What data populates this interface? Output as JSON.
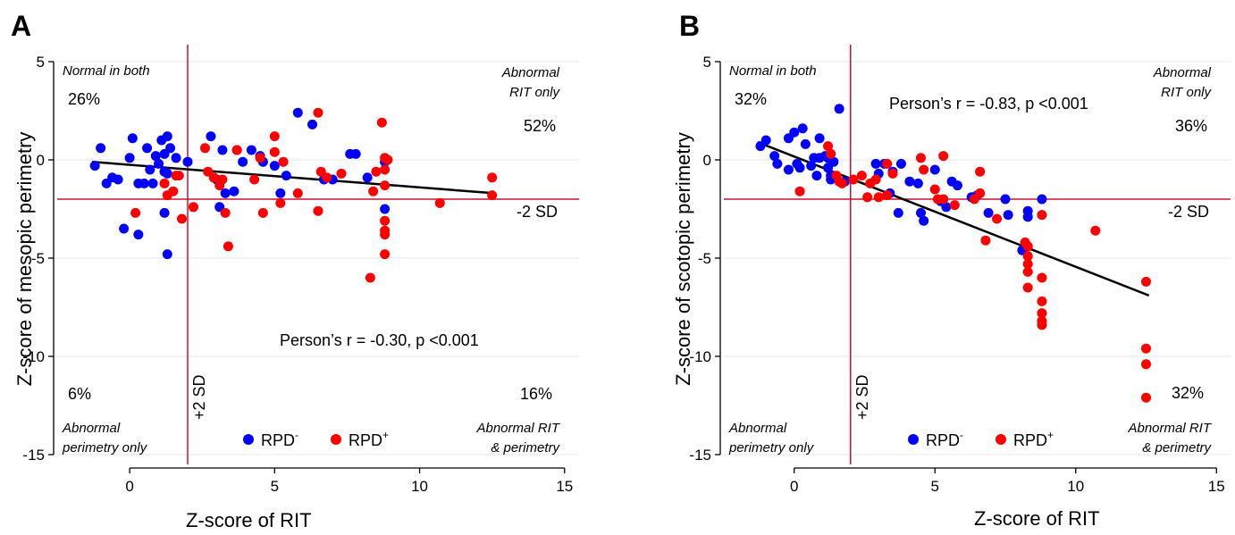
{
  "colors": {
    "rpd_neg": "#0000ff",
    "rpd_pos": "#ff0000",
    "refline": "#cc1133",
    "fit": "#000000"
  },
  "chart_data": [
    {
      "panel": "A",
      "type": "scatter",
      "xlabel": "Z-score of RIT",
      "ylabel": "Z-score of mesopic perimetry",
      "xlim": [
        -2.5,
        15.5
      ],
      "ylim": [
        -15.5,
        5.5
      ],
      "xticks": [
        "0",
        "5",
        "10",
        "15"
      ],
      "yticks": [
        "5",
        "0",
        "-5",
        "-10",
        "-15"
      ],
      "grid": true,
      "ref_x": 2,
      "ref_x_label": "+2 SD",
      "ref_y": -2,
      "ref_y_label": "-2 SD",
      "annotation": "Person’s r = -0.30, p <0.001",
      "quadrants": {
        "top_left": {
          "label": "Normal in both",
          "pct": "26%"
        },
        "top_right": {
          "label_lines": [
            "Abnormal",
            "RIT only"
          ],
          "pct": "52%"
        },
        "bottom_left": {
          "label_lines": [
            "Abnormal",
            "perimetry only"
          ],
          "pct": "6%"
        },
        "bottom_right": {
          "label_lines": [
            "Abnormal RIT",
            "& perimetry"
          ],
          "pct": "16%"
        }
      },
      "legend": {
        "placement": "bottom-center",
        "entries": [
          {
            "base": "RPD",
            "sup": "-"
          },
          {
            "base": "RPD",
            "sup": "+"
          }
        ]
      },
      "fit_line": {
        "x": [
          -1.3,
          12.6
        ],
        "y": [
          -0.1,
          -1.7
        ]
      },
      "series": [
        {
          "name": "RPD-",
          "points": [
            [
              -1.2,
              -0.3
            ],
            [
              -1.0,
              0.6
            ],
            [
              -0.8,
              -1.2
            ],
            [
              -0.6,
              -0.9
            ],
            [
              -0.4,
              -1.0
            ],
            [
              -0.2,
              -3.5
            ],
            [
              0.0,
              0.1
            ],
            [
              0.1,
              1.1
            ],
            [
              0.3,
              -1.2
            ],
            [
              0.3,
              -3.8
            ],
            [
              0.5,
              -1.2
            ],
            [
              0.6,
              0.6
            ],
            [
              0.7,
              -0.5
            ],
            [
              0.8,
              -1.2
            ],
            [
              0.9,
              0.2
            ],
            [
              1.0,
              -0.2
            ],
            [
              1.1,
              1.0
            ],
            [
              1.2,
              0.3
            ],
            [
              1.2,
              -0.6
            ],
            [
              1.2,
              -2.7
            ],
            [
              1.3,
              1.2
            ],
            [
              1.3,
              -0.7
            ],
            [
              1.3,
              -4.8
            ],
            [
              1.4,
              0.6
            ],
            [
              1.6,
              0.1
            ],
            [
              2.0,
              -0.1
            ],
            [
              2.8,
              1.2
            ],
            [
              3.0,
              -1.0
            ],
            [
              3.1,
              -2.4
            ],
            [
              3.2,
              0.5
            ],
            [
              3.3,
              -1.7
            ],
            [
              3.6,
              -1.6
            ],
            [
              3.7,
              0.5
            ],
            [
              3.9,
              -0.1
            ],
            [
              4.2,
              0.5
            ],
            [
              4.5,
              0.2
            ],
            [
              4.6,
              -0.1
            ],
            [
              5.0,
              -0.3
            ],
            [
              5.2,
              -1.7
            ],
            [
              5.4,
              -0.8
            ],
            [
              5.8,
              2.4
            ],
            [
              6.3,
              1.8
            ],
            [
              6.7,
              -1.0
            ],
            [
              7.0,
              -1.0
            ],
            [
              7.6,
              0.3
            ],
            [
              7.8,
              0.3
            ],
            [
              8.2,
              -0.9
            ],
            [
              8.8,
              -0.1
            ],
            [
              8.8,
              -2.5
            ]
          ]
        },
        {
          "name": "RPD+",
          "points": [
            [
              0.2,
              -2.7
            ],
            [
              1.2,
              -1.2
            ],
            [
              1.3,
              -1.8
            ],
            [
              1.5,
              -1.6
            ],
            [
              1.6,
              -0.8
            ],
            [
              1.7,
              -0.8
            ],
            [
              1.8,
              -3.0
            ],
            [
              2.2,
              -2.4
            ],
            [
              2.6,
              0.6
            ],
            [
              2.7,
              -0.6
            ],
            [
              2.9,
              -0.9
            ],
            [
              3.1,
              -1.3
            ],
            [
              3.2,
              -1.0
            ],
            [
              3.3,
              -2.7
            ],
            [
              3.4,
              -4.4
            ],
            [
              3.7,
              0.5
            ],
            [
              4.3,
              -1.0
            ],
            [
              4.5,
              0.1
            ],
            [
              4.6,
              -2.7
            ],
            [
              5.0,
              1.2
            ],
            [
              5.0,
              0.4
            ],
            [
              5.2,
              -2.2
            ],
            [
              5.3,
              -0.1
            ],
            [
              5.8,
              -1.7
            ],
            [
              6.5,
              2.4
            ],
            [
              6.5,
              -2.6
            ],
            [
              6.6,
              -0.6
            ],
            [
              6.8,
              -0.9
            ],
            [
              7.3,
              -0.7
            ],
            [
              8.3,
              -6.0
            ],
            [
              8.4,
              -1.6
            ],
            [
              8.5,
              -0.6
            ],
            [
              8.7,
              1.9
            ],
            [
              8.8,
              0.1
            ],
            [
              8.8,
              -0.5
            ],
            [
              8.8,
              -1.3
            ],
            [
              8.8,
              -3.1
            ],
            [
              8.8,
              -3.6
            ],
            [
              8.8,
              -3.8
            ],
            [
              8.8,
              -4.8
            ],
            [
              8.9,
              0.0
            ],
            [
              10.7,
              -2.2
            ],
            [
              12.5,
              -0.9
            ],
            [
              12.5,
              -1.8
            ]
          ]
        }
      ]
    },
    {
      "panel": "B",
      "type": "scatter",
      "xlabel": "Z-score of RIT",
      "ylabel": "Z-score of scotopic perimetry",
      "xlim": [
        -2.5,
        15.5
      ],
      "ylim": [
        -15.5,
        5.5
      ],
      "xticks": [
        "0",
        "5",
        "10",
        "15"
      ],
      "yticks": [
        "5",
        "0",
        "-5",
        "-10",
        "-15"
      ],
      "grid": true,
      "ref_x": 2,
      "ref_x_label": "+2 SD",
      "ref_y": -2,
      "ref_y_label": "-2 SD",
      "annotation": "Person’s r = -0.83, p <0.001",
      "quadrants": {
        "top_left": {
          "label": "Normal in both",
          "pct": "32%"
        },
        "top_right": {
          "label_lines": [
            "Abnormal",
            "RIT only"
          ],
          "pct": "36%"
        },
        "bottom_left": {
          "label_lines": [
            "Abnormal",
            "perimetry only"
          ],
          "pct": ""
        },
        "bottom_right": {
          "label_lines": [
            "Abnormal RIT",
            "& perimetry"
          ],
          "pct": "32%"
        }
      },
      "legend": {
        "placement": "bottom-center",
        "entries": [
          {
            "base": "RPD",
            "sup": "-"
          },
          {
            "base": "RPD",
            "sup": "+"
          }
        ]
      },
      "fit_line": {
        "x": [
          -1.3,
          12.6
        ],
        "y": [
          0.9,
          -6.9
        ]
      },
      "series": [
        {
          "name": "RPD-",
          "points": [
            [
              -1.2,
              0.7
            ],
            [
              -1.0,
              1.0
            ],
            [
              -0.7,
              0.2
            ],
            [
              -0.6,
              -0.2
            ],
            [
              -0.2,
              1.1
            ],
            [
              -0.2,
              -0.5
            ],
            [
              0.0,
              1.4
            ],
            [
              0.1,
              -0.2
            ],
            [
              0.2,
              -0.4
            ],
            [
              0.3,
              1.6
            ],
            [
              0.4,
              0.8
            ],
            [
              0.6,
              -0.3
            ],
            [
              0.7,
              0.1
            ],
            [
              0.8,
              -0.8
            ],
            [
              0.9,
              0.1
            ],
            [
              0.9,
              1.1
            ],
            [
              1.1,
              0.2
            ],
            [
              1.2,
              -0.4
            ],
            [
              1.2,
              0.1
            ],
            [
              1.3,
              -0.8
            ],
            [
              1.3,
              -1.0
            ],
            [
              1.4,
              -0.1
            ],
            [
              1.6,
              2.6
            ],
            [
              1.8,
              -1.1
            ],
            [
              2.9,
              -0.2
            ],
            [
              3.0,
              -0.7
            ],
            [
              3.2,
              -0.2
            ],
            [
              3.4,
              -1.7
            ],
            [
              3.5,
              -0.6
            ],
            [
              3.7,
              -2.7
            ],
            [
              3.8,
              -0.2
            ],
            [
              4.1,
              -1.1
            ],
            [
              4.4,
              -1.2
            ],
            [
              4.5,
              -2.7
            ],
            [
              4.6,
              -3.1
            ],
            [
              5.0,
              -0.5
            ],
            [
              5.2,
              -2.1
            ],
            [
              5.4,
              -2.4
            ],
            [
              5.6,
              -1.1
            ],
            [
              5.8,
              -1.3
            ],
            [
              6.3,
              -1.9
            ],
            [
              6.5,
              -1.8
            ],
            [
              6.9,
              -2.7
            ],
            [
              7.5,
              -2.0
            ],
            [
              7.6,
              -2.8
            ],
            [
              8.1,
              -4.6
            ],
            [
              8.3,
              -2.6
            ],
            [
              8.3,
              -2.9
            ],
            [
              8.8,
              -2.0
            ]
          ]
        },
        {
          "name": "RPD+",
          "points": [
            [
              0.2,
              -1.6
            ],
            [
              1.2,
              0.7
            ],
            [
              1.3,
              0.3
            ],
            [
              1.5,
              -0.8
            ],
            [
              1.6,
              -1.1
            ],
            [
              1.7,
              -1.2
            ],
            [
              2.1,
              -1.0
            ],
            [
              2.4,
              -0.8
            ],
            [
              2.6,
              -1.9
            ],
            [
              2.7,
              -1.2
            ],
            [
              2.9,
              -1.0
            ],
            [
              3.0,
              -1.9
            ],
            [
              3.3,
              -0.2
            ],
            [
              3.3,
              -1.8
            ],
            [
              3.5,
              -0.7
            ],
            [
              4.5,
              0.1
            ],
            [
              4.6,
              -0.5
            ],
            [
              5.0,
              -1.5
            ],
            [
              5.1,
              -2.0
            ],
            [
              5.3,
              0.2
            ],
            [
              5.3,
              -2.0
            ],
            [
              5.7,
              -2.3
            ],
            [
              6.4,
              -2.0
            ],
            [
              6.6,
              -0.6
            ],
            [
              6.6,
              -1.7
            ],
            [
              6.8,
              -4.1
            ],
            [
              7.2,
              -3.0
            ],
            [
              8.2,
              -4.2
            ],
            [
              8.3,
              -4.4
            ],
            [
              8.3,
              -4.9
            ],
            [
              8.3,
              -5.3
            ],
            [
              8.3,
              -5.7
            ],
            [
              8.3,
              -6.5
            ],
            [
              8.8,
              -2.8
            ],
            [
              8.8,
              -6.0
            ],
            [
              8.8,
              -7.2
            ],
            [
              8.8,
              -7.8
            ],
            [
              8.8,
              -8.2
            ],
            [
              8.8,
              -8.4
            ],
            [
              10.7,
              -3.6
            ],
            [
              12.5,
              -6.2
            ],
            [
              12.5,
              -9.6
            ],
            [
              12.5,
              -10.4
            ],
            [
              12.5,
              -12.1
            ]
          ]
        }
      ]
    }
  ]
}
